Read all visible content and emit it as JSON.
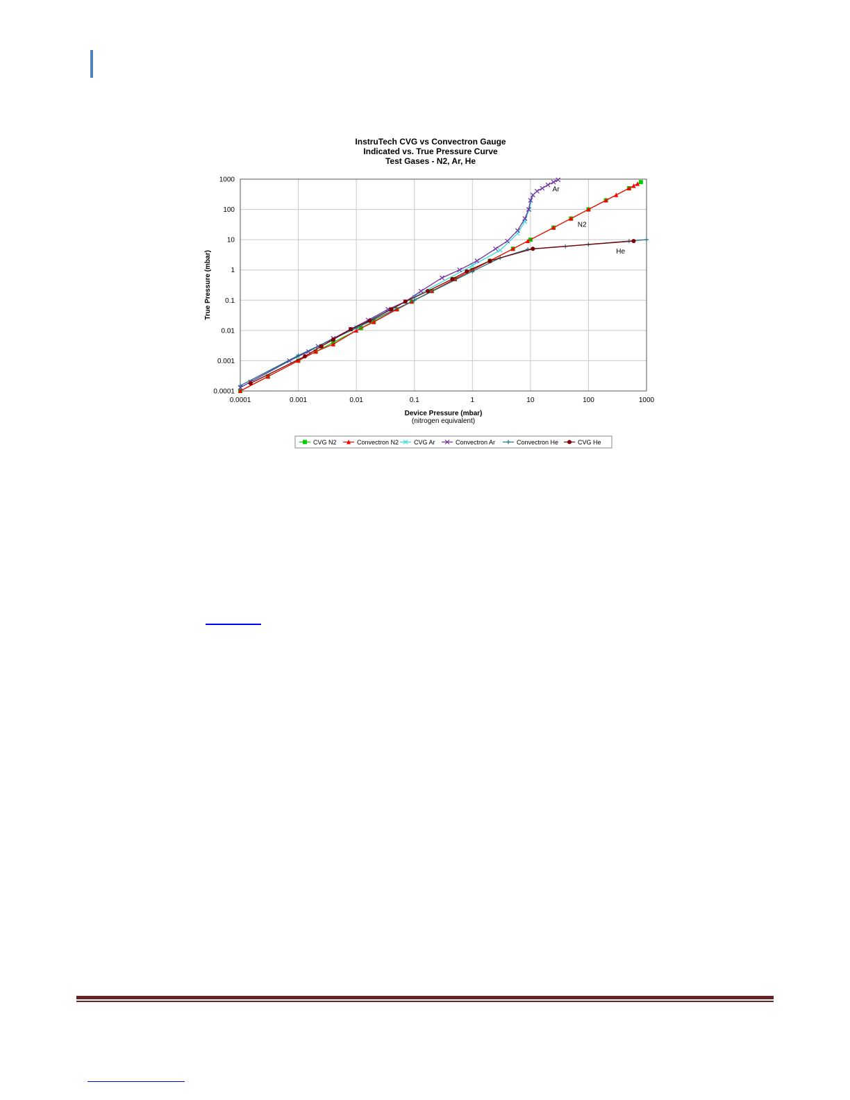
{
  "chart_data": {
    "type": "line",
    "title": [
      "InstruTech CVG vs Convectron Gauge",
      "Indicated vs. True Pressure Curve",
      "Test Gases - N2, Ar, He"
    ],
    "xlabel": [
      "Device Pressure (mbar)",
      "(nitrogen equivalent)"
    ],
    "ylabel": "True Pressure (mbar)",
    "xscale": "log",
    "yscale": "log",
    "xlim": [
      0.0001,
      1000
    ],
    "ylim": [
      0.0001,
      1000
    ],
    "grid": true,
    "legend_position": "bottom",
    "x_ticks": [
      "0.0001",
      "0.001",
      "0.01",
      "0.1",
      "1",
      "10",
      "100",
      "1000"
    ],
    "y_ticks": [
      "0.0001",
      "0.001",
      "0.01",
      "0.1",
      "1",
      "10",
      "100",
      "1000"
    ],
    "annotations": [
      {
        "text": "Ar",
        "x": 24,
        "y": 400
      },
      {
        "text": "N2",
        "x": 65,
        "y": 27
      },
      {
        "text": "He",
        "x": 300,
        "y": 3.5
      }
    ],
    "series": [
      {
        "name": "CVG N2",
        "color": "#00cc00",
        "marker": "square",
        "points": [
          [
            0.0001,
            0.0001
          ],
          [
            0.0003,
            0.0003
          ],
          [
            0.001,
            0.001
          ],
          [
            0.002,
            0.002
          ],
          [
            0.004,
            0.004
          ],
          [
            0.012,
            0.012
          ],
          [
            0.02,
            0.02
          ],
          [
            0.05,
            0.05
          ],
          [
            0.09,
            0.09
          ],
          [
            0.2,
            0.2
          ],
          [
            0.5,
            0.5
          ],
          [
            1,
            1
          ],
          [
            2,
            2
          ],
          [
            5,
            5
          ],
          [
            10,
            10
          ],
          [
            25,
            25
          ],
          [
            50,
            50
          ],
          [
            100,
            100
          ],
          [
            200,
            200
          ],
          [
            500,
            500
          ],
          [
            800,
            800
          ]
        ]
      },
      {
        "name": "Convectron N2",
        "color": "#ff0000",
        "marker": "triangle",
        "points": [
          [
            0.0001,
            0.0001
          ],
          [
            0.0003,
            0.0003
          ],
          [
            0.001,
            0.001
          ],
          [
            0.002,
            0.002
          ],
          [
            0.004,
            0.0035
          ],
          [
            0.01,
            0.01
          ],
          [
            0.02,
            0.019
          ],
          [
            0.05,
            0.05
          ],
          [
            0.09,
            0.09
          ],
          [
            0.2,
            0.2
          ],
          [
            0.5,
            0.5
          ],
          [
            1,
            1
          ],
          [
            2,
            2
          ],
          [
            5,
            5
          ],
          [
            9,
            9
          ],
          [
            25,
            25
          ],
          [
            50,
            50
          ],
          [
            100,
            100
          ],
          [
            200,
            200
          ],
          [
            300,
            300
          ],
          [
            500,
            500
          ],
          [
            600,
            600
          ],
          [
            700,
            700
          ]
        ]
      },
      {
        "name": "CVG Ar",
        "color": "#33dddd",
        "marker": "x",
        "points": [
          [
            0.0001,
            0.00013
          ],
          [
            0.001,
            0.0014
          ],
          [
            0.01,
            0.013
          ],
          [
            0.1,
            0.13
          ],
          [
            1,
            1.4
          ],
          [
            3,
            4.5
          ],
          [
            6,
            16
          ],
          [
            8,
            40
          ],
          [
            9.5,
            100
          ],
          [
            11,
            300
          ]
        ]
      },
      {
        "name": "Convectron Ar",
        "color": "#7030a0",
        "marker": "x",
        "points": [
          [
            0.0001,
            0.00013
          ],
          [
            0.00015,
            0.0002
          ],
          [
            0.0007,
            0.001
          ],
          [
            0.0015,
            0.002
          ],
          [
            0.0022,
            0.003
          ],
          [
            0.004,
            0.0055
          ],
          [
            0.008,
            0.011
          ],
          [
            0.016,
            0.022
          ],
          [
            0.035,
            0.05
          ],
          [
            0.07,
            0.09
          ],
          [
            0.13,
            0.2
          ],
          [
            0.3,
            0.55
          ],
          [
            0.6,
            1
          ],
          [
            1.2,
            2
          ],
          [
            2.5,
            5
          ],
          [
            4,
            9
          ],
          [
            6,
            20
          ],
          [
            8,
            50
          ],
          [
            9.3,
            100
          ],
          [
            10,
            200
          ],
          [
            11,
            300
          ],
          [
            13,
            400
          ],
          [
            16,
            500
          ],
          [
            20,
            650
          ],
          [
            25,
            800
          ],
          [
            30,
            950
          ]
        ]
      },
      {
        "name": "Convectron He",
        "color": "#207080",
        "marker": "plus",
        "points": [
          [
            0.0001,
            0.00015
          ],
          [
            0.001,
            0.0015
          ],
          [
            0.01,
            0.012
          ],
          [
            0.1,
            0.1
          ],
          [
            1,
            0.9
          ],
          [
            3,
            2.5
          ],
          [
            9,
            4.8
          ],
          [
            40,
            6
          ],
          [
            100,
            7
          ],
          [
            500,
            9
          ],
          [
            1000,
            10
          ]
        ]
      },
      {
        "name": "CVG He",
        "color": "#7b0000",
        "marker": "circle",
        "points": [
          [
            0.00015,
            0.00018
          ],
          [
            0.0013,
            0.0014
          ],
          [
            0.0025,
            0.003
          ],
          [
            0.004,
            0.005
          ],
          [
            0.008,
            0.011
          ],
          [
            0.017,
            0.021
          ],
          [
            0.04,
            0.05
          ],
          [
            0.07,
            0.09
          ],
          [
            0.17,
            0.2
          ],
          [
            0.45,
            0.5
          ],
          [
            0.8,
            0.9
          ],
          [
            2,
            2
          ],
          [
            11,
            5
          ],
          [
            600,
            9
          ]
        ]
      }
    ]
  }
}
